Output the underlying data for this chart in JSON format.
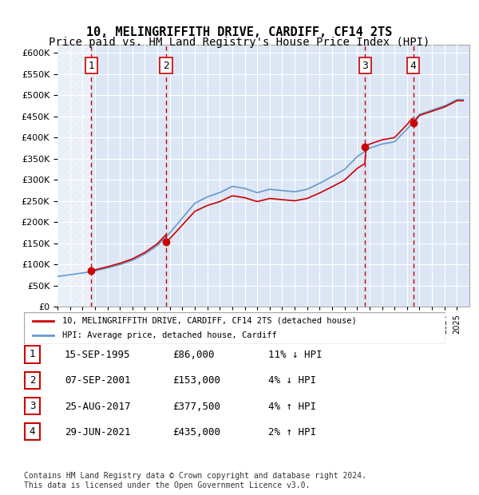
{
  "title": "10, MELINGRIFFITH DRIVE, CARDIFF, CF14 2TS",
  "subtitle": "Price paid vs. HM Land Registry's House Price Index (HPI)",
  "title_fontsize": 11,
  "subtitle_fontsize": 10,
  "hpi_color": "#6699cc",
  "price_color": "#cc0000",
  "bg_color": "#dce6f5",
  "plot_bg": "#dce6f5",
  "ylim": [
    0,
    620000
  ],
  "ytick_step": 50000,
  "legend_label_price": "10, MELINGRIFFITH DRIVE, CARDIFF, CF14 2TS (detached house)",
  "legend_label_hpi": "HPI: Average price, detached house, Cardiff",
  "transactions": [
    {
      "num": 1,
      "date": "15-SEP-1995",
      "price": 86000,
      "hpi_rel": "11% ↓ HPI",
      "year": 1995.7
    },
    {
      "num": 2,
      "date": "07-SEP-2001",
      "price": 153000,
      "hpi_rel": "4% ↓ HPI",
      "year": 2001.7
    },
    {
      "num": 3,
      "date": "25-AUG-2017",
      "price": 377500,
      "hpi_rel": "4% ↑ HPI",
      "year": 2017.65
    },
    {
      "num": 4,
      "date": "29-JUN-2021",
      "price": 435000,
      "hpi_rel": "2% ↑ HPI",
      "year": 2021.5
    }
  ],
  "footer": "Contains HM Land Registry data © Crown copyright and database right 2024.\nThis data is licensed under the Open Government Licence v3.0.",
  "xmin": 1993,
  "xmax": 2026
}
